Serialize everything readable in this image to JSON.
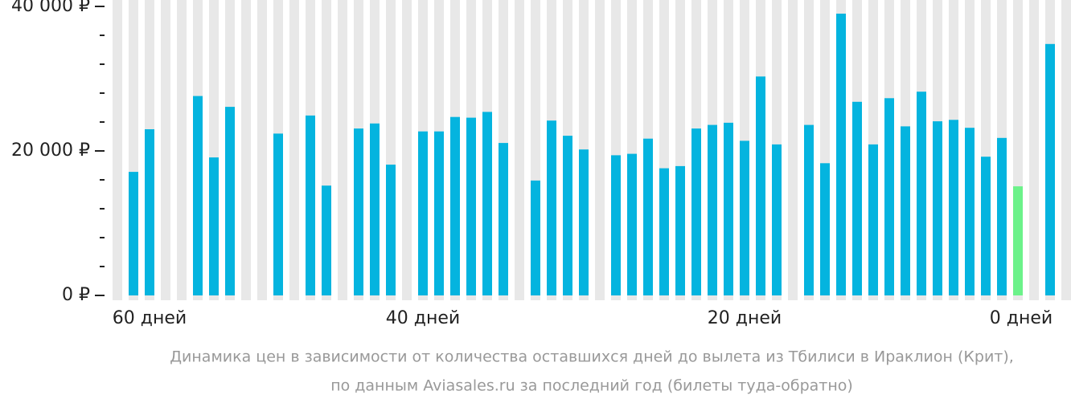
{
  "chart_data": {
    "type": "bar",
    "caption": [
      "Динамика цен в зависимости от количества оставшихся дней до вылета из Тбилиси в Ираклион (Крит),",
      "по данным Aviasales.ru за последний год (билеты туда-обратно)"
    ],
    "categories": [
      null,
      null,
      "60 дней",
      null,
      null,
      null,
      null,
      null,
      null,
      null,
      null,
      null,
      null,
      null,
      null,
      null,
      null,
      null,
      null,
      "40 дней",
      null,
      null,
      null,
      null,
      null,
      null,
      null,
      null,
      null,
      null,
      null,
      null,
      null,
      null,
      null,
      null,
      null,
      null,
      null,
      "20 дней",
      null,
      null,
      null,
      null,
      null,
      null,
      null,
      null,
      null,
      null,
      null,
      null,
      null,
      null,
      null,
      null,
      null,
      "0 дней",
      null,
      null
    ],
    "values": [
      null,
      17100,
      23000,
      null,
      null,
      27600,
      19100,
      26100,
      null,
      null,
      22400,
      null,
      24900,
      15200,
      null,
      23100,
      23800,
      18100,
      null,
      22700,
      22700,
      24700,
      24600,
      25400,
      21100,
      null,
      15900,
      24200,
      22100,
      20200,
      null,
      19400,
      19600,
      21700,
      17600,
      17900,
      23100,
      23600,
      23900,
      21400,
      30300,
      20900,
      null,
      23600,
      18300,
      39000,
      26800,
      20900,
      27300,
      23400,
      28200,
      24100,
      24300,
      23200,
      19200,
      21800,
      15100,
      null,
      34800,
      null
    ],
    "color": "#04b4df",
    "highlight_color": "#6cf28a",
    "highlight": [
      56
    ],
    "ylim": [
      0,
      40000
    ],
    "yticks": [
      {
        "value": 0,
        "label": "0 ₽"
      },
      {
        "value": 20000,
        "label": "20 000 ₽"
      },
      {
        "value": 40000,
        "label": "40 000 ₽"
      }
    ],
    "minor_yticks": [
      4000,
      8000,
      12000,
      16000,
      24000,
      28000,
      32000,
      36000
    ]
  }
}
